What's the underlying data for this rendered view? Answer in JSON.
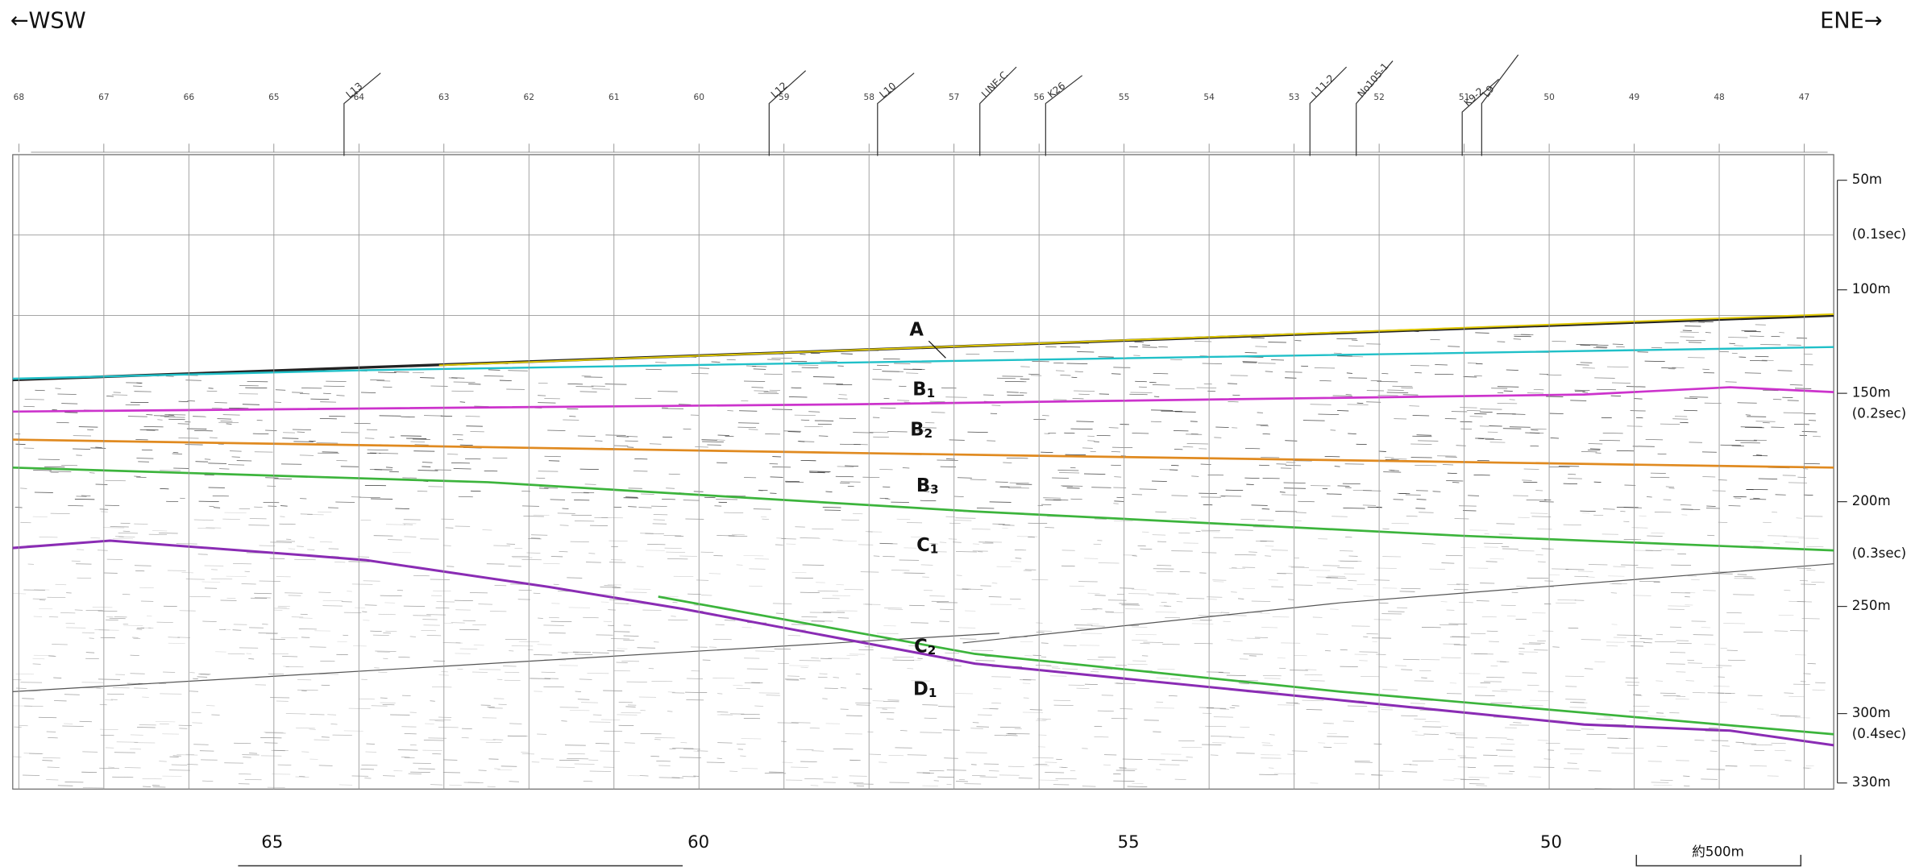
{
  "header": {
    "left": "←WSW",
    "right": "ENE→"
  },
  "stations": [
    "68",
    "67",
    "66",
    "65",
    "64",
    "63",
    "62",
    "61",
    "60",
    "59",
    "58",
    "57",
    "56",
    "55",
    "54",
    "53",
    "52",
    "51",
    "50",
    "49",
    "48",
    "47"
  ],
  "survey_lines": [
    "L13",
    "L12",
    "L10",
    "LINE-C",
    "K26",
    "L11-2",
    "No105-1",
    "L9",
    "K9-2"
  ],
  "depth_scale": [
    "50m",
    "(0.1sec)",
    "100m",
    "150m",
    "(0.2sec)",
    "200m",
    "(0.3sec)",
    "250m",
    "300m",
    "(0.4sec)",
    "330m"
  ],
  "distance_labels": [
    "65",
    "60",
    "55",
    "50"
  ],
  "layers": [
    {
      "letter": "A",
      "sub": ""
    },
    {
      "letter": "B",
      "sub": "1"
    },
    {
      "letter": "B",
      "sub": "2"
    },
    {
      "letter": "B",
      "sub": "3"
    },
    {
      "letter": "C",
      "sub": "1"
    },
    {
      "letter": "C",
      "sub": "2"
    },
    {
      "letter": "D",
      "sub": "1"
    }
  ],
  "scale_bar": "約500m"
}
